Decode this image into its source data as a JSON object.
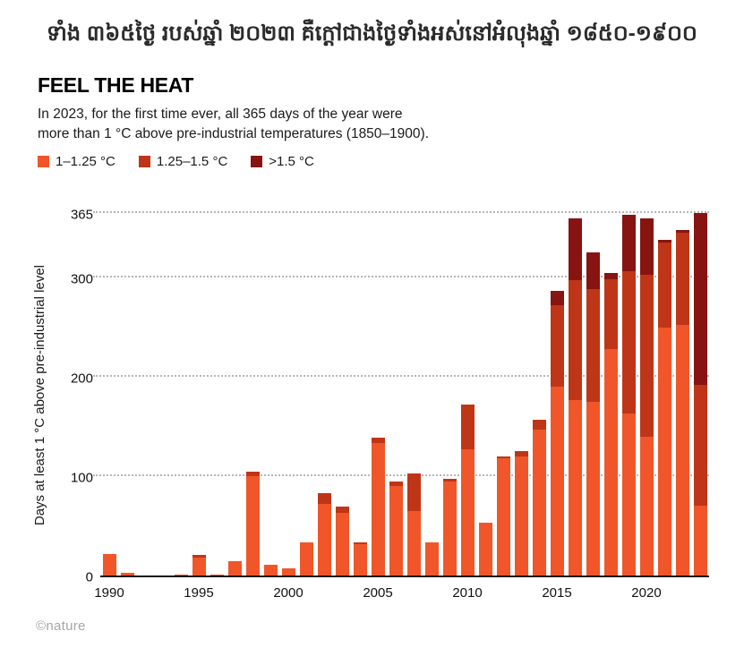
{
  "header": {
    "khmer_title": "ទាំង ៣៦៥ថ្ងៃ របស់ឆ្នាំ ២០២៣ គឺក្តៅជាងថ្ងៃទាំងអស់នៅអំលុងឆ្នាំ ១៨៥០-១៩០០",
    "title": "FEEL THE HEAT",
    "subtitle_line1": "In 2023, for the first time ever, all 365 days of the year were",
    "subtitle_line2": "more than 1 °C above pre-industrial temperatures (1850–1900)."
  },
  "footer": {
    "credit": "©nature"
  },
  "chart_data": {
    "type": "bar",
    "variant": "stacked",
    "title": "FEEL THE HEAT",
    "ylabel": "Days at least 1 °C above pre-industrial level",
    "xlabel": "",
    "ylim": [
      0,
      365
    ],
    "yticks": [
      0,
      100,
      200,
      300,
      365
    ],
    "xticks": [
      1990,
      1995,
      2000,
      2005,
      2010,
      2015,
      2020
    ],
    "grid": "dotted horizontal",
    "legend_position": "top-left",
    "x": [
      1990,
      1991,
      1992,
      1993,
      1994,
      1995,
      1996,
      1997,
      1998,
      1999,
      2000,
      2001,
      2002,
      2003,
      2004,
      2005,
      2006,
      2007,
      2008,
      2009,
      2010,
      2011,
      2012,
      2013,
      2014,
      2015,
      2016,
      2017,
      2018,
      2019,
      2020,
      2021,
      2022,
      2023
    ],
    "series": [
      {
        "name": "1–1.25 °C",
        "color": "#f0562a",
        "values": [
          22,
          3,
          0,
          0,
          1,
          18,
          1,
          14,
          100,
          11,
          7,
          33,
          72,
          63,
          32,
          133,
          90,
          65,
          33,
          95,
          127,
          53,
          118,
          120,
          147,
          190,
          177,
          175,
          228,
          163,
          140,
          250,
          252,
          70
        ]
      },
      {
        "name": "1.25–1.5 °C",
        "color": "#bf3517",
        "values": [
          0,
          0,
          0,
          0,
          0,
          3,
          0,
          0,
          5,
          0,
          0,
          0,
          11,
          6,
          1,
          6,
          5,
          38,
          0,
          2,
          45,
          0,
          2,
          5,
          10,
          82,
          120,
          113,
          70,
          143,
          163,
          85,
          93,
          122
        ]
      },
      {
        "name": ">1.5 °C",
        "color": "#871410",
        "values": [
          0,
          0,
          0,
          0,
          0,
          0,
          0,
          0,
          0,
          0,
          0,
          0,
          0,
          0,
          0,
          0,
          0,
          0,
          0,
          0,
          0,
          0,
          0,
          0,
          0,
          15,
          63,
          37,
          7,
          57,
          57,
          3,
          3,
          173
        ]
      }
    ]
  }
}
